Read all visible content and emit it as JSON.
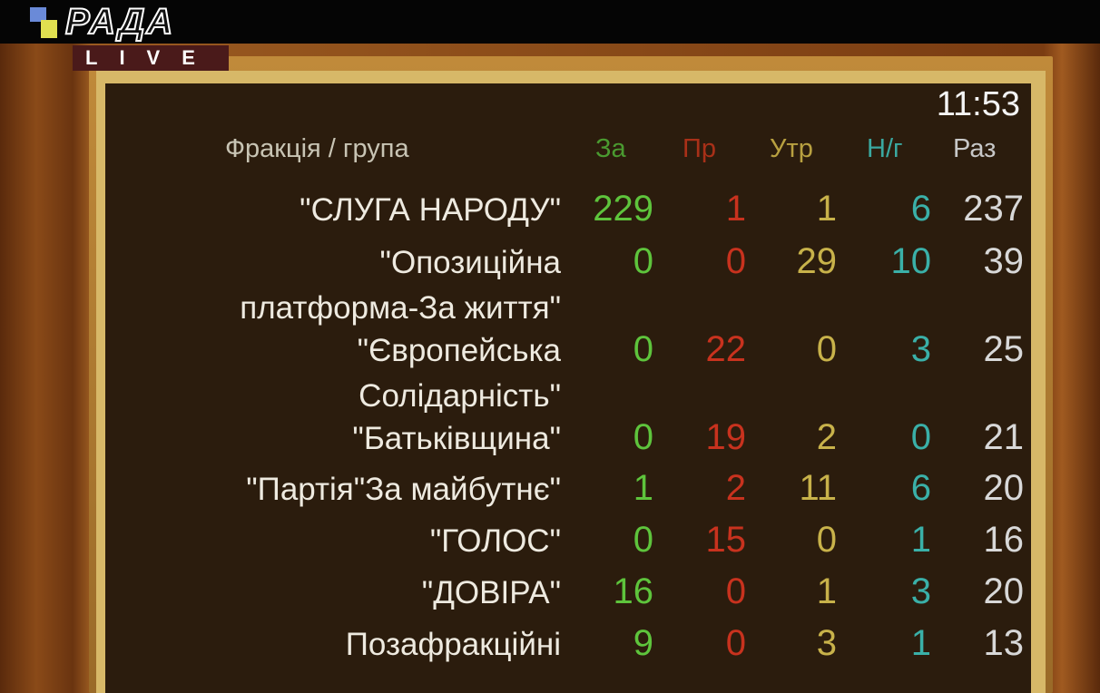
{
  "logo": {
    "brand": "РАДА",
    "live": "LIVE"
  },
  "clock": "11:53",
  "headers": {
    "faction": "Фракція / група",
    "za": "За",
    "pr": "Пр",
    "utr": "Утр",
    "ng": "Н/г",
    "raz": "Раз"
  },
  "colors": {
    "za": "#5ec43c",
    "pr": "#c8321e",
    "utr": "#c8b24a",
    "ng": "#3ab0a8",
    "raz": "#d8d8d8",
    "board": "#2b1c0d"
  },
  "rows": [
    {
      "name": [
        "\"СЛУГА НАРОДУ\""
      ],
      "za": "229",
      "pr": "1",
      "utr": "1",
      "ng": "6",
      "raz": "237"
    },
    {
      "name": [
        "\"Опозиційна",
        "платформа-За життя\""
      ],
      "za": "0",
      "pr": "0",
      "utr": "29",
      "ng": "10",
      "raz": "39"
    },
    {
      "name": [
        "\"Європейська",
        "Солідарність\""
      ],
      "za": "0",
      "pr": "22",
      "utr": "0",
      "ng": "3",
      "raz": "25"
    },
    {
      "name": [
        "\"Батьківщина\""
      ],
      "za": "0",
      "pr": "19",
      "utr": "2",
      "ng": "0",
      "raz": "21"
    },
    {
      "name": [
        "\"Партія\"За майбутнє\""
      ],
      "za": "1",
      "pr": "2",
      "utr": "11",
      "ng": "6",
      "raz": "20"
    },
    {
      "name": [
        "\"ГОЛОС\""
      ],
      "za": "0",
      "pr": "15",
      "utr": "0",
      "ng": "1",
      "raz": "16"
    },
    {
      "name": [
        "\"ДОВІРА\""
      ],
      "za": "16",
      "pr": "0",
      "utr": "1",
      "ng": "3",
      "raz": "20"
    },
    {
      "name": [
        "Позафракційні"
      ],
      "za": "9",
      "pr": "0",
      "utr": "3",
      "ng": "1",
      "raz": "13"
    }
  ]
}
